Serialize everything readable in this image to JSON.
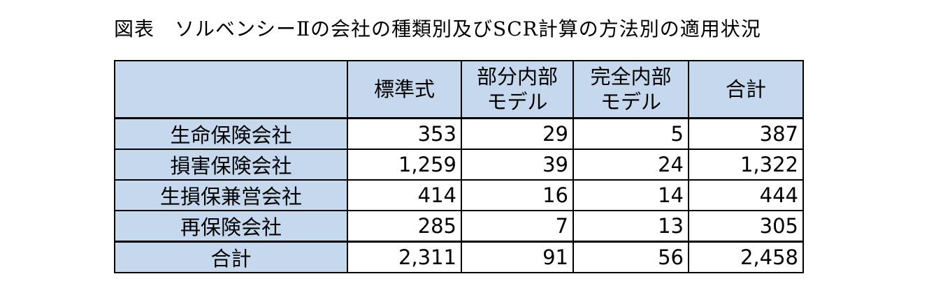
{
  "title": "図表　ソルベンシーⅡの会社の種類別及びSCR計算の方法別の適用状況",
  "table": {
    "header": {
      "corner": "",
      "standard": [
        "標準式"
      ],
      "partial": [
        "部分内部",
        "モデル"
      ],
      "full": [
        "完全内部",
        "モデル"
      ],
      "total": [
        "合計"
      ]
    },
    "rows": [
      {
        "label": "生命保険会社",
        "standard": "353",
        "partial": "29",
        "full": "5",
        "total": "387"
      },
      {
        "label": "損害保険会社",
        "standard": "1,259",
        "partial": "39",
        "full": "24",
        "total": "1,322"
      },
      {
        "label": "生損保兼営会社",
        "standard": "414",
        "partial": "16",
        "full": "14",
        "total": "444"
      },
      {
        "label": "再保険会社",
        "standard": "285",
        "partial": "7",
        "full": "13",
        "total": "305"
      }
    ],
    "total_row": {
      "label": "合計",
      "standard": "2,311",
      "partial": "91",
      "full": "56",
      "total": "2,458"
    },
    "colors": {
      "header_bg": "#c5d8ee",
      "cell_bg": "#ffffff",
      "border": "#000000"
    }
  }
}
